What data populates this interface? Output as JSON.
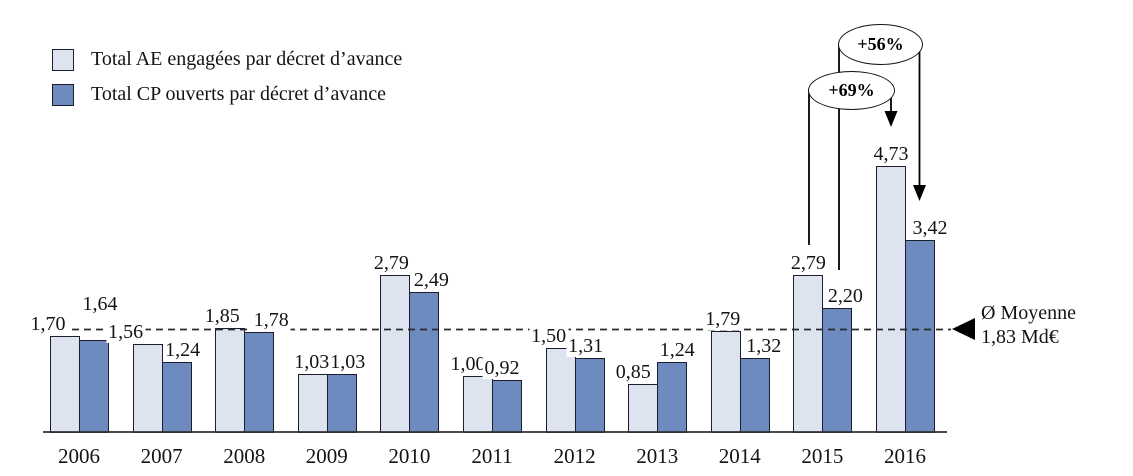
{
  "colors": {
    "ae_fill": "#dde4f0",
    "cp_fill": "#6d8bbf",
    "bar_border": "#1d1d30",
    "line_color": "#000000",
    "dash_color": "#2b2b2b"
  },
  "chart_data": {
    "type": "bar",
    "title": "",
    "xlabel": "",
    "ylabel": "",
    "unit": "Md€",
    "ylim": [
      0,
      5
    ],
    "grid": false,
    "legend_position": "top-left",
    "categories": [
      "2006",
      "2007",
      "2008",
      "2009",
      "2010",
      "2011",
      "2012",
      "2013",
      "2014",
      "2015",
      "2016"
    ],
    "series": [
      {
        "name": "Total AE engagées par décret d’avance",
        "color": "#dde4f0",
        "values": [
          1.7,
          1.56,
          1.85,
          1.03,
          2.79,
          1.0,
          1.5,
          0.85,
          1.79,
          2.79,
          4.73
        ],
        "value_labels": [
          "1,70",
          "1,56",
          "1,85",
          "1,03",
          "2,79",
          "1,00",
          "1,50",
          "0,85",
          "1,79",
          "2,79",
          "4,73"
        ]
      },
      {
        "name": "Total CP ouverts par décret d’avance",
        "color": "#6d8bbf",
        "values": [
          1.64,
          1.24,
          1.78,
          1.03,
          2.49,
          0.92,
          1.31,
          1.24,
          1.32,
          2.2,
          3.42
        ],
        "value_labels": [
          "1,64",
          "1,24",
          "1,78",
          "1,03",
          "2,49",
          "0,92",
          "1,31",
          "1,24",
          "1,32",
          "2,20",
          "3,42"
        ]
      }
    ],
    "average_line": {
      "value": 1.83,
      "style": "dashed",
      "label_line1": "Ø Moyenne",
      "label_line2": "1,83 Md€"
    },
    "annotations": [
      {
        "label": "+56%",
        "from": "2015 CP (2,20)",
        "to": "2016 CP (3,42)"
      },
      {
        "label": "+69%",
        "from": "2015 AE (2,79)",
        "to": "2016 AE (4,73)"
      }
    ]
  }
}
